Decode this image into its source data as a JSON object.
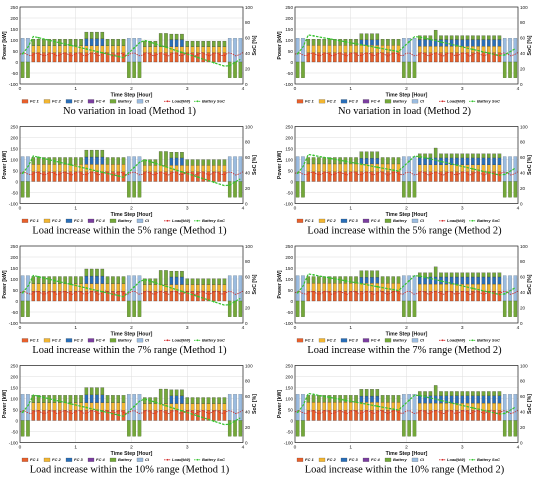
{
  "colors": {
    "fc1": "#e8602c",
    "fc2": "#f2b632",
    "fc3": "#2a6fb8",
    "fc4": "#7b3fa0",
    "battery": "#74a83a",
    "ci": "#9bbce0",
    "load": "#d12a2a",
    "soc": "#35c32f",
    "frame": "#222222",
    "grid": "#dddddd"
  },
  "chart_data": [
    {
      "type": "bar",
      "caption": "No variation in load (Method 1)",
      "xlabel": "Time Step [Hour]",
      "ylabel": "Power [kW]",
      "y2label": "SoC [%]",
      "xlim": [
        0,
        4
      ],
      "ylim": [
        -100,
        250
      ],
      "y2lim": [
        0,
        100
      ],
      "xticks": [
        "0",
        "1",
        "2",
        "3",
        "4"
      ],
      "yticks": [
        "-100",
        "-50",
        "0",
        "50",
        "100",
        "150",
        "200",
        "250"
      ],
      "y2ticks": [
        "0",
        "20",
        "40",
        "60",
        "80",
        "100"
      ],
      "legend": [
        "FC 1",
        "FC 2",
        "FC 3",
        "FC 4",
        "Battery",
        "CI",
        "Load(kW)",
        "Battery SoC"
      ],
      "method": 1,
      "load_scale": 1.0
    },
    {
      "type": "bar",
      "caption": "No variation in load (Method 2)",
      "xlabel": "Time Step [Hour]",
      "ylabel": "Power [kW]",
      "y2label": "SoC [%]",
      "xlim": [
        0,
        4
      ],
      "ylim": [
        -100,
        250
      ],
      "y2lim": [
        0,
        100
      ],
      "xticks": [
        "0",
        "1",
        "2",
        "3",
        "4"
      ],
      "yticks": [
        "-100",
        "-50",
        "0",
        "50",
        "100",
        "150",
        "200",
        "250"
      ],
      "y2ticks": [
        "0",
        "20",
        "40",
        "60",
        "80",
        "100"
      ],
      "legend": [
        "FC 1",
        "FC 2",
        "FC 3",
        "FC 4",
        "Battery",
        "CI",
        "Load(kW)",
        "Battery SoC"
      ],
      "method": 2,
      "load_scale": 1.0
    },
    {
      "type": "bar",
      "caption": "Load increase within the 5% range (Method 1)",
      "xlabel": "Time Step [Hour]",
      "ylabel": "Power [kW]",
      "y2label": "SoC [%]",
      "xlim": [
        0,
        4
      ],
      "ylim": [
        -100,
        250
      ],
      "y2lim": [
        0,
        100
      ],
      "xticks": [
        "0",
        "1",
        "2",
        "3",
        "4"
      ],
      "yticks": [
        "-100",
        "-50",
        "0",
        "50",
        "100",
        "150",
        "200",
        "250"
      ],
      "y2ticks": [
        "0",
        "20",
        "40",
        "60",
        "80",
        "100"
      ],
      "legend": [
        "FC 1",
        "FC 2",
        "FC 3",
        "FC 4",
        "Battery",
        "CI",
        "Load(kW)",
        "Battery SoC"
      ],
      "method": 1,
      "load_scale": 1.05
    },
    {
      "type": "bar",
      "caption": "Load increase within the 5% range (Method 2)",
      "xlabel": "Time Step [Hour]",
      "ylabel": "Power [kW]",
      "y2label": "SoC [%]",
      "xlim": [
        0,
        4
      ],
      "ylim": [
        -100,
        250
      ],
      "y2lim": [
        0,
        100
      ],
      "xticks": [
        "0",
        "1",
        "2",
        "3",
        "4"
      ],
      "yticks": [
        "-100",
        "-50",
        "0",
        "50",
        "100",
        "150",
        "200",
        "250"
      ],
      "y2ticks": [
        "0",
        "20",
        "40",
        "60",
        "80",
        "100"
      ],
      "legend": [
        "FC 1",
        "FC 2",
        "FC 3",
        "FC 4",
        "Battery",
        "CI",
        "Load(kW)",
        "Battery SoC"
      ],
      "method": 2,
      "load_scale": 1.05
    },
    {
      "type": "bar",
      "caption": "Load increase within the 7% range (Method 1)",
      "xlabel": "Time Step [Hour]",
      "ylabel": "Power [kW]",
      "y2label": "SoC [%]",
      "xlim": [
        0,
        4
      ],
      "ylim": [
        -100,
        250
      ],
      "y2lim": [
        0,
        100
      ],
      "xticks": [
        "0",
        "1",
        "2",
        "3",
        "4"
      ],
      "yticks": [
        "-100",
        "-50",
        "0",
        "50",
        "100",
        "150",
        "200",
        "250"
      ],
      "y2ticks": [
        "0",
        "20",
        "40",
        "60",
        "80",
        "100"
      ],
      "legend": [
        "FC 1",
        "FC 2",
        "FC 3",
        "FC 4",
        "Battery",
        "CI",
        "Load(kW)",
        "Battery SoC"
      ],
      "method": 1,
      "load_scale": 1.07
    },
    {
      "type": "bar",
      "caption": "Load increase within the 7% range (Method 2)",
      "xlabel": "Time Step [Hour]",
      "ylabel": "Power [kW]",
      "y2label": "SoC [%]",
      "xlim": [
        0,
        4
      ],
      "ylim": [
        -100,
        250
      ],
      "y2lim": [
        0,
        100
      ],
      "xticks": [
        "0",
        "1",
        "2",
        "3",
        "4"
      ],
      "yticks": [
        "-100",
        "-50",
        "0",
        "50",
        "100",
        "150",
        "200",
        "250"
      ],
      "y2ticks": [
        "0",
        "20",
        "40",
        "60",
        "80",
        "100"
      ],
      "legend": [
        "FC 1",
        "FC 2",
        "FC 3",
        "FC 4",
        "Battery",
        "CI",
        "Load(kW)",
        "Battery SoC"
      ],
      "method": 2,
      "load_scale": 1.07
    },
    {
      "type": "bar",
      "caption": "Load increase within the 10% range (Method 1)",
      "xlabel": "Time Step [Hour]",
      "ylabel": "Power [kW]",
      "y2label": "SoC [%]",
      "xlim": [
        0,
        4
      ],
      "ylim": [
        -100,
        250
      ],
      "y2lim": [
        0,
        100
      ],
      "xticks": [
        "0",
        "1",
        "2",
        "3",
        "4"
      ],
      "yticks": [
        "-100",
        "-50",
        "0",
        "50",
        "100",
        "150",
        "200",
        "250"
      ],
      "y2ticks": [
        "0",
        "20",
        "40",
        "60",
        "80",
        "100"
      ],
      "legend": [
        "FC 1",
        "FC 2",
        "FC 3",
        "FC 4",
        "Battery",
        "CI",
        "Load(kW)",
        "Battery SoC"
      ],
      "method": 1,
      "load_scale": 1.1
    },
    {
      "type": "bar",
      "caption": "Load increase within the 10% range (Method 2)",
      "xlabel": "Time Step [Hour]",
      "ylabel": "Power [kW]",
      "y2label": "SoC [%]",
      "xlim": [
        0,
        4
      ],
      "ylim": [
        -100,
        250
      ],
      "y2lim": [
        0,
        100
      ],
      "xticks": [
        "0",
        "1",
        "2",
        "3",
        "4"
      ],
      "yticks": [
        "-100",
        "-50",
        "0",
        "50",
        "100",
        "150",
        "200",
        "250"
      ],
      "y2ticks": [
        "0",
        "20",
        "40",
        "60",
        "80",
        "100"
      ],
      "legend": [
        "FC 1",
        "FC 2",
        "FC 3",
        "FC 4",
        "Battery",
        "CI",
        "Load(kW)",
        "Battery SoC"
      ],
      "method": 2,
      "load_scale": 1.1
    }
  ]
}
